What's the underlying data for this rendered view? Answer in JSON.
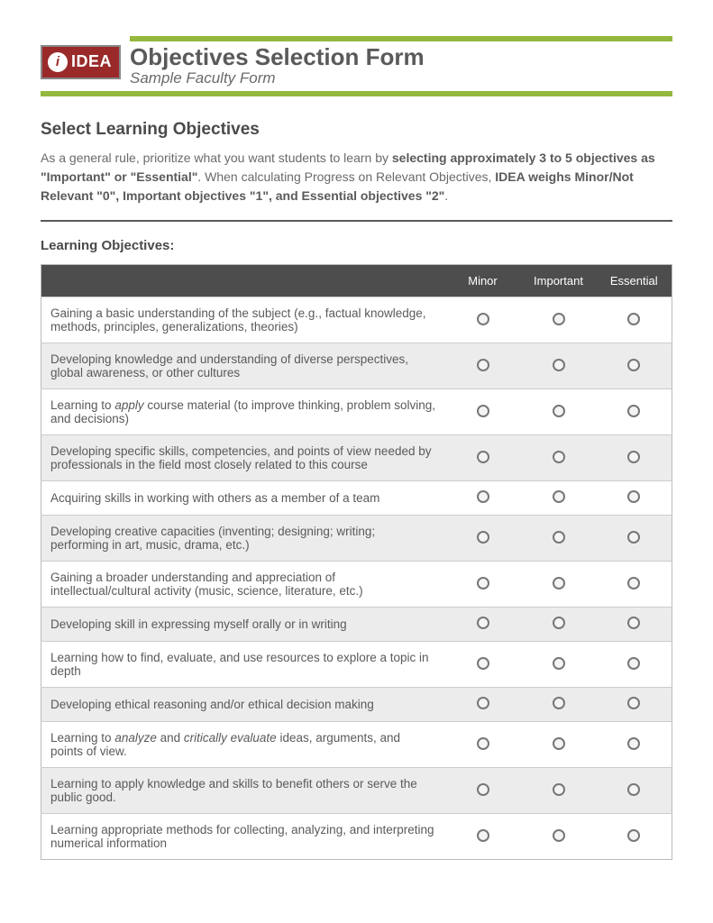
{
  "logo": {
    "icon_letter": "i",
    "text": "IDEA",
    "bg_color": "#9a2a2a"
  },
  "header": {
    "title": "Objectives Selection Form",
    "subtitle": "Sample Faculty Form",
    "accent_color": "#94b83d"
  },
  "section": {
    "title": "Select Learning Objectives",
    "intro_part1": "As a general rule, prioritize what you want students to learn by ",
    "intro_bold1": "selecting approximately 3 to 5 objectives as \"Important\" or \"Essential\"",
    "intro_part2": ". When calculating Progress on Relevant Objectives, ",
    "intro_bold2": "IDEA weighs Minor/Not Relevant \"0\", Important objectives \"1\", and Essential objectives \"2\"",
    "intro_part3": ".",
    "sub_heading": "Learning Objectives:"
  },
  "table": {
    "header_bg": "#4d4d4d",
    "columns": [
      "",
      "Minor",
      "Important",
      "Essential"
    ],
    "rows": [
      {
        "text": "Gaining a basic understanding of the subject (e.g., factual knowledge, methods, principles, generalizations, theories)"
      },
      {
        "text": "Developing knowledge and understanding of diverse perspectives, global awareness, or other cultures"
      },
      {
        "html": "Learning to <em>apply</em> course material (to improve thinking, problem solving, and decisions)"
      },
      {
        "text": "Developing specific skills, competencies, and points of view needed by professionals in the field most closely related to this course"
      },
      {
        "text": "Acquiring skills in working with others as a member of a team"
      },
      {
        "text": "Developing creative capacities (inventing; designing; writing; performing in art, music, drama, etc.)"
      },
      {
        "text": "Gaining a broader understanding and appreciation of intellectual/cultural activity (music, science, literature, etc.)"
      },
      {
        "text": "Developing skill in expressing myself orally or in writing"
      },
      {
        "text": "Learning how to find, evaluate, and use resources to explore a topic in depth"
      },
      {
        "text": "Developing ethical reasoning and/or ethical decision making"
      },
      {
        "html": "Learning to <em>analyze</em> and <em>critically evaluate</em> ideas, arguments, and points of view."
      },
      {
        "text": "Learning to apply knowledge and skills to benefit others or serve the public good."
      },
      {
        "text": "Learning appropriate methods for collecting, analyzing, and interpreting numerical information"
      }
    ]
  }
}
